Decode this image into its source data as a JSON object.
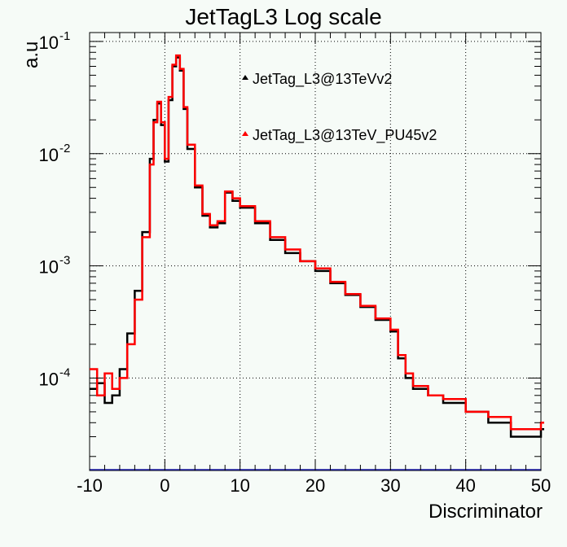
{
  "chart_data": {
    "type": "line",
    "title": "JetTagL3 Log scale",
    "xlabel": "Discriminator",
    "ylabel": "a.u",
    "xlim": [
      -10,
      50
    ],
    "ylim": [
      1.5e-05,
      0.12
    ],
    "yscale": "log",
    "grid": true,
    "legend_position": "top-right",
    "x_ticks": [
      "-10",
      "0",
      "10",
      "20",
      "30",
      "40",
      "50"
    ],
    "y_ticks": [
      {
        "base": "10",
        "exp": "-4"
      },
      {
        "base": "10",
        "exp": "-3"
      },
      {
        "base": "10",
        "exp": "-2"
      },
      {
        "base": "10",
        "exp": "-1"
      }
    ],
    "x": [
      -10,
      -9,
      -8,
      -7,
      -6,
      -5,
      -4,
      -3,
      -2,
      -1.5,
      -1,
      -0.5,
      0,
      0.5,
      1,
      1.5,
      2,
      2.5,
      3,
      4,
      5,
      6,
      7,
      8,
      9,
      10,
      12,
      14,
      16,
      18,
      20,
      22,
      24,
      26,
      28,
      30,
      31,
      32,
      33,
      35,
      37,
      40,
      43,
      46,
      50
    ],
    "series": [
      {
        "name": "JetTag_L3@13TeVv2",
        "color": "#000000",
        "values": [
          8e-05,
          9e-05,
          6e-05,
          7e-05,
          0.00012,
          0.00025,
          0.0006,
          0.002,
          0.009,
          0.02,
          0.028,
          0.018,
          0.0085,
          0.03,
          0.06,
          0.072,
          0.055,
          0.025,
          0.011,
          0.005,
          0.0028,
          0.0022,
          0.0024,
          0.0045,
          0.0038,
          0.0033,
          0.0024,
          0.0017,
          0.0013,
          0.0011,
          0.0009,
          0.0007,
          0.00055,
          0.00043,
          0.00033,
          0.00026,
          0.00015,
          0.0001,
          8e-05,
          7e-05,
          6e-05,
          5e-05,
          4e-05,
          3e-05,
          3.5e-05
        ]
      },
      {
        "name": "JetTag_L3@13TeV_PU45v2",
        "color": "#ff0000",
        "values": [
          0.00012,
          7e-05,
          0.00011,
          8e-05,
          0.0001,
          0.0002,
          0.0005,
          0.0018,
          0.008,
          0.019,
          0.029,
          0.019,
          0.009,
          0.032,
          0.062,
          0.075,
          0.057,
          0.026,
          0.012,
          0.0052,
          0.0029,
          0.0023,
          0.0025,
          0.0046,
          0.004,
          0.0034,
          0.0025,
          0.0018,
          0.0014,
          0.0011,
          0.00095,
          0.00072,
          0.00056,
          0.00044,
          0.00034,
          0.00027,
          0.00016,
          0.00011,
          8.5e-05,
          7e-05,
          6.5e-05,
          5e-05,
          4.5e-05,
          3.5e-05,
          4e-05
        ]
      }
    ]
  }
}
